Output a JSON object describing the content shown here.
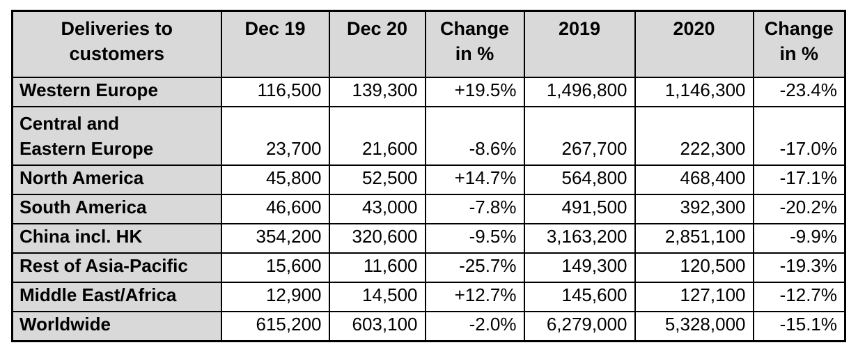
{
  "chart_data": {
    "type": "table",
    "title": "Deliveries to customers",
    "columns": [
      "Deliveries to\ncustomers",
      "Dec 19",
      "Dec 20",
      "Change\nin %",
      "2019",
      "2020",
      "Change\nin %"
    ],
    "rows": [
      [
        "Western Europe",
        "116,500",
        "139,300",
        "+19.5%",
        "1,496,800",
        "1,146,300",
        "-23.4%"
      ],
      [
        "Central and\nEastern Europe",
        "23,700",
        "21,600",
        "-8.6%",
        "267,700",
        "222,300",
        "-17.0%"
      ],
      [
        "North America",
        "45,800",
        "52,500",
        "+14.7%",
        "564,800",
        "468,400",
        "-17.1%"
      ],
      [
        "South America",
        "46,600",
        "43,000",
        "-7.8%",
        "491,500",
        "392,300",
        "-20.2%"
      ],
      [
        "China incl. HK",
        "354,200",
        "320,600",
        "-9.5%",
        "3,163,200",
        "2,851,100",
        "-9.9%"
      ],
      [
        "Rest of Asia-Pacific",
        "15,600",
        "11,600",
        "-25.7%",
        "149,300",
        "120,500",
        "-19.3%"
      ],
      [
        "Middle East/Africa",
        "12,900",
        "14,500",
        "+12.7%",
        "145,600",
        "127,100",
        "-12.7%"
      ],
      [
        "Worldwide",
        "615,200",
        "603,100",
        "-2.0%",
        "6,279,000",
        "5,328,000",
        "-15.1%"
      ]
    ],
    "colors": {
      "header_background": "#d9d9d9",
      "row_label_background": "#d9d9d9",
      "cell_background": "#ffffff",
      "border": "#000000",
      "text": "#000000"
    },
    "layout_hints": {
      "grid": true,
      "number_alignment": "right",
      "label_alignment": "left",
      "header_alignment": "center"
    }
  }
}
